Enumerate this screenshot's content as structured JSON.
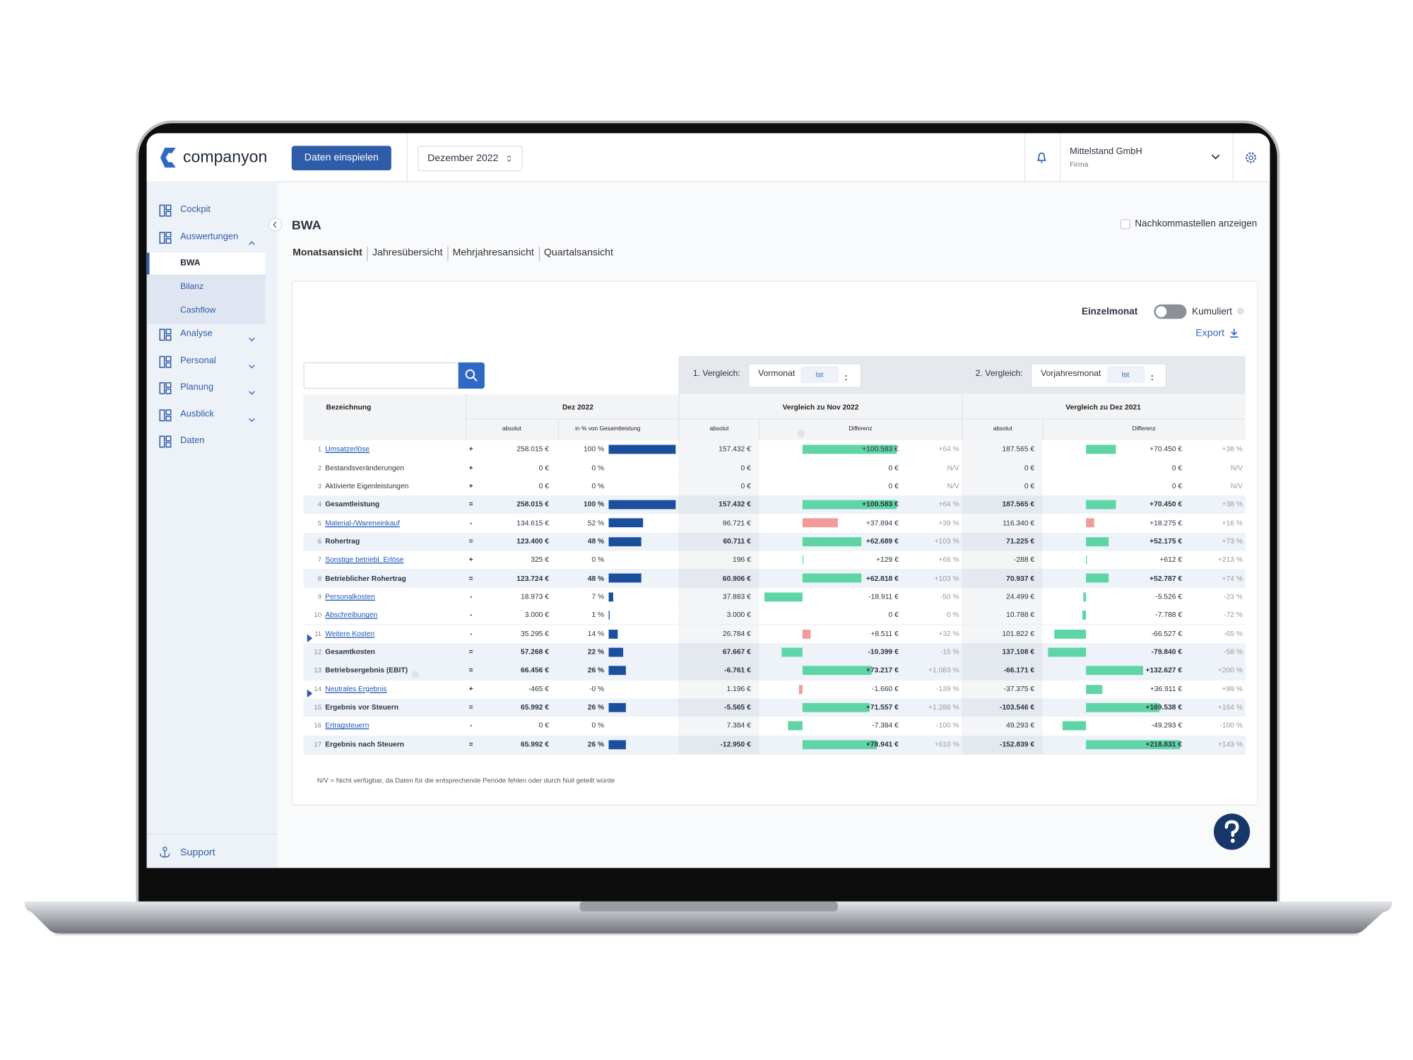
{
  "header": {
    "logo": "companyon",
    "upload_button": "Daten einspielen",
    "period": "Dezember 2022",
    "company": "Mittelstand GmbH",
    "company_type": "Firma"
  },
  "sidebar": {
    "items": [
      {
        "label": "Cockpit"
      },
      {
        "label": "Auswertungen",
        "collapsible": true,
        "expanded": true,
        "children": [
          "BWA",
          "Bilanz",
          "Cashflow"
        ],
        "active_child": 0
      },
      {
        "label": "Analyse",
        "collapsible": true
      },
      {
        "label": "Personal",
        "collapsible": true
      },
      {
        "label": "Planung",
        "collapsible": true
      },
      {
        "label": "Ausblick",
        "collapsible": true
      },
      {
        "label": "Daten"
      }
    ],
    "support": "Support"
  },
  "page": {
    "title": "BWA",
    "decimals_label": "Nachkommastellen anzeigen",
    "tabs": [
      "Monatsansicht",
      "Jahresübersicht",
      "Mehrjahresansicht",
      "Quartalsansicht"
    ],
    "active_tab": 0
  },
  "controls": {
    "single_month": "Einzelmonat",
    "cumulative": "Kumuliert",
    "export": "Export",
    "comparison1": {
      "label": "1. Vergleich:",
      "basis": "Vormonat",
      "type": "Ist"
    },
    "comparison2": {
      "label": "2. Vergleich:",
      "basis": "Vorjahresmonat",
      "type": "Ist"
    }
  },
  "table": {
    "headers": {
      "name": "Bezeichnung",
      "period": "Dez 2022",
      "comparison1": "Vergleich zu Nov 2022",
      "comparison2": "Vergleich zu Dez 2021",
      "absolute": "absolut",
      "share": "in % von Gesamtleistung",
      "difference": "Differenz"
    },
    "rows": [
      {
        "number": 1,
        "name": "Umsatzerlöse",
        "operator": "+",
        "link": true,
        "absolute": {
          "value": 258015,
          "label": "258.015 €"
        },
        "share": {
          "value": 100,
          "label": "100 %"
        },
        "cmp1": {
          "absolute": {
            "value": 157432,
            "label": "157.432 €"
          },
          "difference": {
            "value": 100583,
            "label": "+100.583 €"
          },
          "percent": {
            "value": 64,
            "label": "+64 %"
          }
        },
        "cmp2": {
          "absolute": {
            "value": 187565,
            "label": "187.565 €"
          },
          "difference": {
            "value": 70450,
            "label": "+70.450 €"
          },
          "percent": {
            "value": 38,
            "label": "+38 %"
          }
        }
      },
      {
        "number": 2,
        "name": "Bestandsveränderungen",
        "operator": "+",
        "absolute": {
          "value": 0,
          "label": "0 €"
        },
        "share": {
          "value": 0,
          "label": "0 %"
        },
        "cmp1": {
          "absolute": {
            "value": 0,
            "label": "0 €"
          },
          "difference": {
            "value": 0,
            "label": "0 €"
          },
          "percent": "N/V"
        },
        "cmp2": {
          "absolute": {
            "value": 0,
            "label": "0 €"
          },
          "difference": {
            "value": 0,
            "label": "0 €"
          },
          "percent": "N/V"
        }
      },
      {
        "number": 3,
        "name": "Aktivierte Eigenleistungen",
        "operator": "+",
        "absolute": {
          "value": 0,
          "label": "0 €"
        },
        "share": {
          "value": 0,
          "label": "0 %"
        },
        "cmp1": {
          "absolute": {
            "value": 0,
            "label": "0 €"
          },
          "difference": {
            "value": 0,
            "label": "0 €"
          },
          "percent": "N/V"
        },
        "cmp2": {
          "absolute": {
            "value": 0,
            "label": "0 €"
          },
          "difference": {
            "value": 0,
            "label": "0 €"
          },
          "percent": "N/V"
        }
      },
      {
        "number": 4,
        "name": "Gesamtleistung",
        "operator": "=",
        "bold": true,
        "absolute": {
          "value": 258015,
          "label": "258.015 €"
        },
        "share": {
          "value": 100,
          "label": "100 %"
        },
        "cmp1": {
          "absolute": {
            "value": 157432,
            "label": "157.432 €"
          },
          "difference": {
            "value": 100583,
            "label": "+100.583 €"
          },
          "percent": {
            "value": 64,
            "label": "+64 %"
          }
        },
        "cmp2": {
          "absolute": {
            "value": 187565,
            "label": "187.565 €"
          },
          "difference": {
            "value": 70450,
            "label": "+70.450 €"
          },
          "percent": {
            "value": 38,
            "label": "+38 %"
          }
        }
      },
      {
        "number": 5,
        "name": "Material-/Wareneinkauf",
        "operator": "-",
        "link": true,
        "cost": true,
        "absolute": {
          "value": 134615,
          "label": "134.615 €"
        },
        "share": {
          "value": 52,
          "label": "52 %"
        },
        "cmp1": {
          "absolute": {
            "value": 96721,
            "label": "96.721 €"
          },
          "difference": {
            "value": 37894,
            "label": "+37.894 €"
          },
          "percent": {
            "value": 39,
            "label": "+39 %"
          }
        },
        "cmp2": {
          "absolute": {
            "value": 116340,
            "label": "116.340 €"
          },
          "difference": {
            "value": 18275,
            "label": "+18.275 €"
          },
          "percent": {
            "value": 16,
            "label": "+16 %"
          }
        }
      },
      {
        "number": 6,
        "name": "Rohertrag",
        "operator": "=",
        "bold": true,
        "absolute": {
          "value": 123400,
          "label": "123.400 €"
        },
        "share": {
          "value": 48,
          "label": "48 %"
        },
        "cmp1": {
          "absolute": {
            "value": 60711,
            "label": "60.711 €"
          },
          "difference": {
            "value": 62689,
            "label": "+62.689 €"
          },
          "percent": {
            "value": 103,
            "label": "+103 %"
          }
        },
        "cmp2": {
          "absolute": {
            "value": 71225,
            "label": "71.225 €"
          },
          "difference": {
            "value": 52175,
            "label": "+52.175 €"
          },
          "percent": {
            "value": 73,
            "label": "+73 %"
          }
        }
      },
      {
        "number": 7,
        "name": "Sonstige betriebl. Erlöse",
        "operator": "+",
        "link": true,
        "absolute": {
          "value": 325,
          "label": "325 €"
        },
        "share": {
          "value": 0,
          "label": "0 %"
        },
        "cmp1": {
          "absolute": {
            "value": 196,
            "label": "196 €"
          },
          "difference": {
            "value": 129,
            "label": "+129 €"
          },
          "percent": {
            "value": 66,
            "label": "+66 %"
          }
        },
        "cmp2": {
          "absolute": {
            "value": -288,
            "label": "-288 €"
          },
          "difference": {
            "value": 612,
            "label": "+612 €"
          },
          "percent": {
            "value": 213,
            "label": "+213 %"
          }
        }
      },
      {
        "number": 8,
        "name": "Betrieblicher Rohertrag",
        "operator": "=",
        "bold": true,
        "absolute": {
          "value": 123724,
          "label": "123.724 €"
        },
        "share": {
          "value": 48,
          "label": "48 %"
        },
        "cmp1": {
          "absolute": {
            "value": 60906,
            "label": "60.906 €"
          },
          "difference": {
            "value": 62818,
            "label": "+62.818 €"
          },
          "percent": {
            "value": 103,
            "label": "+103 %"
          }
        },
        "cmp2": {
          "absolute": {
            "value": 70937,
            "label": "70.937 €"
          },
          "difference": {
            "value": 52787,
            "label": "+52.787 €"
          },
          "percent": {
            "value": 74,
            "label": "+74 %"
          }
        }
      },
      {
        "number": 9,
        "name": "Personalkosten",
        "operator": "-",
        "link": true,
        "cost": true,
        "absolute": {
          "value": 18973,
          "label": "18.973 €"
        },
        "share": {
          "value": 7,
          "label": "7 %"
        },
        "cmp1": {
          "absolute": {
            "value": 37883,
            "label": "37.883 €"
          },
          "difference": {
            "value": -18911,
            "label": "-18.911 €"
          },
          "percent": {
            "value": -50,
            "label": "-50 %"
          }
        },
        "cmp2": {
          "absolute": {
            "value": 24499,
            "label": "24.499 €"
          },
          "difference": {
            "value": -5526,
            "label": "-5.526 €"
          },
          "percent": {
            "value": -23,
            "label": "-23 %"
          }
        }
      },
      {
        "number": 10,
        "name": "Abschreibungen",
        "operator": "-",
        "link": true,
        "cost": true,
        "absolute": {
          "value": 3000,
          "label": "3.000 €"
        },
        "share": {
          "value": 1,
          "label": "1 %"
        },
        "cmp1": {
          "absolute": {
            "value": 3000,
            "label": "3.000 €"
          },
          "difference": {
            "value": 0,
            "label": "0 €"
          },
          "percent": {
            "value": 0,
            "label": "0 %"
          }
        },
        "cmp2": {
          "absolute": {
            "value": 10788,
            "label": "10.788 €"
          },
          "difference": {
            "value": -7788,
            "label": "-7.788 €"
          },
          "percent": {
            "value": -72,
            "label": "-72 %"
          }
        }
      },
      {
        "number": 11,
        "name": "Weitere Kosten",
        "operator": "-",
        "link": true,
        "cost": true,
        "expandable": true,
        "absolute": {
          "value": 35295,
          "label": "35.295 €"
        },
        "share": {
          "value": 14,
          "label": "14 %"
        },
        "cmp1": {
          "absolute": {
            "value": 26784,
            "label": "26.784 €"
          },
          "difference": {
            "value": 8511,
            "label": "+8.511 €"
          },
          "percent": {
            "value": 32,
            "label": "+32 %"
          }
        },
        "cmp2": {
          "absolute": {
            "value": 101822,
            "label": "101.822 €"
          },
          "difference": {
            "value": -66527,
            "label": "-66.527 €"
          },
          "percent": {
            "value": -65,
            "label": "-65 %"
          }
        }
      },
      {
        "number": 12,
        "name": "Gesamtkosten",
        "operator": "=",
        "bold": true,
        "cost": true,
        "absolute": {
          "value": 57268,
          "label": "57.268 €"
        },
        "share": {
          "value": 22,
          "label": "22 %"
        },
        "cmp1": {
          "absolute": {
            "value": 67667,
            "label": "67.667 €"
          },
          "difference": {
            "value": -10399,
            "label": "-10.399 €"
          },
          "percent": {
            "value": -15,
            "label": "-15 %"
          }
        },
        "cmp2": {
          "absolute": {
            "value": 137108,
            "label": "137.108 €"
          },
          "difference": {
            "value": -79840,
            "label": "-79.840 €"
          },
          "percent": {
            "value": -58,
            "label": "-58 %"
          }
        }
      },
      {
        "number": 13,
        "name": "Betriebsergebnis (EBIT)",
        "operator": "=",
        "bold": true,
        "info": true,
        "absolute": {
          "value": 66456,
          "label": "66.456 €"
        },
        "share": {
          "value": 26,
          "label": "26 %"
        },
        "cmp1": {
          "absolute": {
            "value": -6761,
            "label": "-6.761 €"
          },
          "difference": {
            "value": 73217,
            "label": "+73.217 €"
          },
          "percent": {
            "value": 1083,
            "label": "+1.083 %"
          }
        },
        "cmp2": {
          "absolute": {
            "value": -66171,
            "label": "-66.171 €"
          },
          "difference": {
            "value": 132627,
            "label": "+132.627 €"
          },
          "percent": {
            "value": 200,
            "label": "+200 %"
          }
        }
      },
      {
        "number": 14,
        "name": "Neutrales Ergebnis",
        "operator": "+",
        "link": true,
        "expandable": true,
        "absolute": {
          "value": -465,
          "label": "-465 €"
        },
        "share": {
          "value": 0,
          "label": "-0 %"
        },
        "cmp1": {
          "absolute": {
            "value": 1196,
            "label": "1.196 €"
          },
          "difference": {
            "value": -1660,
            "label": "-1.660 €"
          },
          "percent": {
            "value": -139,
            "label": "-139 %"
          }
        },
        "cmp2": {
          "absolute": {
            "value": -37375,
            "label": "-37.375 €"
          },
          "difference": {
            "value": 36911,
            "label": "+36.911 €"
          },
          "percent": {
            "value": 99,
            "label": "+99 %"
          }
        }
      },
      {
        "number": 15,
        "name": "Ergebnis vor Steuern",
        "operator": "=",
        "bold": true,
        "absolute": {
          "value": 65992,
          "label": "65.992 €"
        },
        "share": {
          "value": 26,
          "label": "26 %"
        },
        "cmp1": {
          "absolute": {
            "value": -5565,
            "label": "-5.565 €"
          },
          "difference": {
            "value": 71557,
            "label": "+71.557 €"
          },
          "percent": {
            "value": 1286,
            "label": "+1.286 %"
          }
        },
        "cmp2": {
          "absolute": {
            "value": -103546,
            "label": "-103.546 €"
          },
          "difference": {
            "value": 169538,
            "label": "+169.538 €"
          },
          "percent": {
            "value": 164,
            "label": "+164 %"
          }
        }
      },
      {
        "number": 16,
        "name": "Ertragsteuern",
        "operator": "-",
        "link": true,
        "cost": true,
        "absolute": {
          "value": 0,
          "label": "0 €"
        },
        "share": {
          "value": 0,
          "label": "0 %"
        },
        "cmp1": {
          "absolute": {
            "value": 7384,
            "label": "7.384 €"
          },
          "difference": {
            "value": -7384,
            "label": "-7.384 €"
          },
          "percent": {
            "value": -100,
            "label": "-100 %"
          }
        },
        "cmp2": {
          "absolute": {
            "value": 49293,
            "label": "49.293 €"
          },
          "difference": {
            "value": -49293,
            "label": "-49.293 €"
          },
          "percent": {
            "value": -100,
            "label": "-100 %"
          }
        }
      },
      {
        "number": 17,
        "name": "Ergebnis nach Steuern",
        "operator": "=",
        "bold": true,
        "absolute": {
          "value": 65992,
          "label": "65.992 €"
        },
        "share": {
          "value": 26,
          "label": "26 %"
        },
        "cmp1": {
          "absolute": {
            "value": -12950,
            "label": "-12.950 €"
          },
          "difference": {
            "value": 78941,
            "label": "+78.941 €"
          },
          "percent": {
            "value": 610,
            "label": "+610 %"
          }
        },
        "cmp2": {
          "absolute": {
            "value": -152839,
            "label": "-152.839 €"
          },
          "difference": {
            "value": 218831,
            "label": "+218.831 €"
          },
          "percent": {
            "value": 143,
            "label": "+143 %"
          }
        }
      }
    ]
  },
  "footnote": "N/V = Nicht verfügbar, da Daten für die entsprechende Periode fehlen oder durch Null geteilt würde"
}
